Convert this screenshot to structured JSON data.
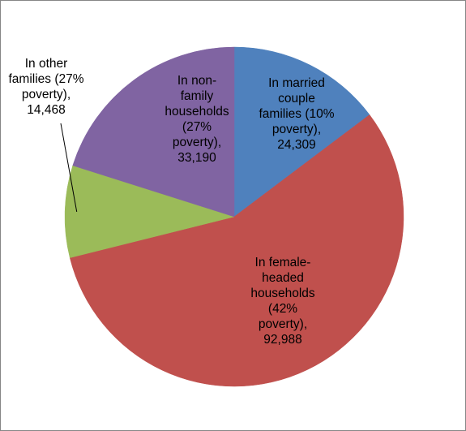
{
  "chart_data": {
    "type": "pie",
    "title": "",
    "start_angle_deg": 0,
    "direction": "clockwise",
    "slices": [
      {
        "label": "In married couple families (10% poverty), 24,309",
        "label_text": "In married\ncouple\nfamilies (10%\npoverty),\n24,309",
        "value": 24309,
        "color": "#4f81bd"
      },
      {
        "label": "In female-headed households (42% poverty), 92,988",
        "label_text": "In female-\nheaded\nhouseholds\n(42%\npoverty),\n92,988",
        "value": 92988,
        "color": "#c0504d"
      },
      {
        "label": "In other families (27% poverty), 14,468",
        "label_text": "In other\nfamilies (27%\npoverty),\n14,468",
        "value": 14468,
        "color": "#9bbb59"
      },
      {
        "label": "In non-family households (27% poverty), 33,190",
        "label_text": "In non-\nfamily\nhouseholds\n(27%\npoverty),\n33,190",
        "value": 33190,
        "color": "#8064a2"
      }
    ],
    "legend": "none",
    "data_labels": "inside, except In other families (outside with leader line)"
  }
}
